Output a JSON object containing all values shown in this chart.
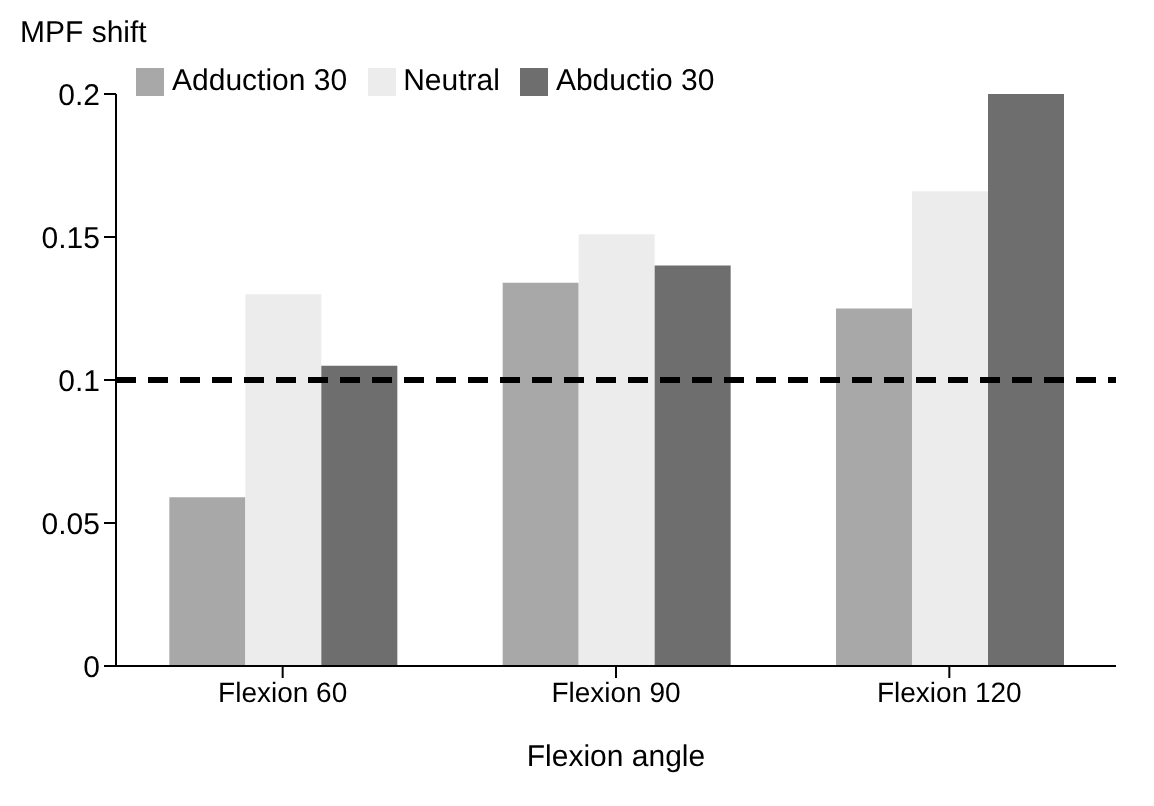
{
  "chart_data": {
    "type": "bar",
    "ylabel": "MPF shift",
    "xlabel": "Flexion angle",
    "categories": [
      "Flexion 60",
      "Flexion 90",
      "Flexion 120"
    ],
    "series": [
      {
        "name": "Adduction 30",
        "color": "#a8a8a8",
        "values": [
          0.059,
          0.134,
          0.125
        ]
      },
      {
        "name": "Neutral",
        "color": "#ececec",
        "values": [
          0.13,
          0.151,
          0.166
        ]
      },
      {
        "name": "Abductio 30",
        "color": "#6e6e6e",
        "values": [
          0.105,
          0.14,
          0.2
        ]
      }
    ],
    "ylim": [
      0,
      0.2
    ],
    "yticks": [
      0,
      0.05,
      0.1,
      0.15,
      0.2
    ],
    "grid": false,
    "legend": "top left",
    "ref_lines": [
      {
        "axis": "y",
        "value": 0.1,
        "color": "#000000",
        "line_style": "dashed"
      }
    ]
  }
}
